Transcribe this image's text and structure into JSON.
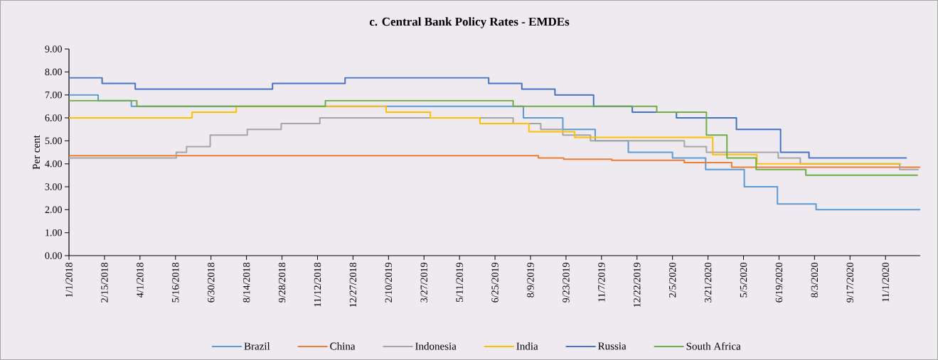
{
  "chart_data": {
    "type": "step",
    "title": "c. Central Bank Policy Rates - EMDEs",
    "ylabel": "Per cent",
    "xlim": [
      "2018-01-01",
      "2020-12-15"
    ],
    "xticks": [
      {
        "value": "2018-01-01",
        "label": "1/1/2018"
      },
      {
        "value": "2018-02-15",
        "label": "2/15/2018"
      },
      {
        "value": "2018-04-01",
        "label": "4/1/2018"
      },
      {
        "value": "2018-05-16",
        "label": "5/16/2018"
      },
      {
        "value": "2018-06-30",
        "label": "6/30/2018"
      },
      {
        "value": "2018-08-14",
        "label": "8/14/2018"
      },
      {
        "value": "2018-09-28",
        "label": "9/28/2018"
      },
      {
        "value": "2018-11-12",
        "label": "11/12/2018"
      },
      {
        "value": "2018-12-27",
        "label": "12/27/2018"
      },
      {
        "value": "2019-02-10",
        "label": "2/10/2019"
      },
      {
        "value": "2019-03-27",
        "label": "3/27/2019"
      },
      {
        "value": "2019-05-11",
        "label": "5/11/2019"
      },
      {
        "value": "2019-06-25",
        "label": "6/25/2019"
      },
      {
        "value": "2019-08-09",
        "label": "8/9/2019"
      },
      {
        "value": "2019-09-23",
        "label": "9/23/2019"
      },
      {
        "value": "2019-11-07",
        "label": "11/7/2019"
      },
      {
        "value": "2019-12-22",
        "label": "12/22/2019"
      },
      {
        "value": "2020-02-05",
        "label": "2/5/2020"
      },
      {
        "value": "2020-03-21",
        "label": "3/21/2020"
      },
      {
        "value": "2020-05-05",
        "label": "5/5/2020"
      },
      {
        "value": "2020-06-19",
        "label": "6/19/2020"
      },
      {
        "value": "2020-08-03",
        "label": "8/3/2020"
      },
      {
        "value": "2020-09-17",
        "label": "9/17/2020"
      },
      {
        "value": "2020-11-01",
        "label": "11/1/2020"
      }
    ],
    "ylim": [
      0,
      9
    ],
    "yticks": [
      {
        "value": 0,
        "label": "0.00"
      },
      {
        "value": 1,
        "label": "1.00"
      },
      {
        "value": 2,
        "label": "2.00"
      },
      {
        "value": 3,
        "label": "3.00"
      },
      {
        "value": 4,
        "label": "4.00"
      },
      {
        "value": 5,
        "label": "5.00"
      },
      {
        "value": 6,
        "label": "6.00"
      },
      {
        "value": 7,
        "label": "7.00"
      },
      {
        "value": 8,
        "label": "8.00"
      },
      {
        "value": 9,
        "label": "9.00"
      }
    ],
    "grid": false,
    "legend": "bottom",
    "marker": "none",
    "line_style": "solid",
    "series": [
      {
        "name": "Brazil",
        "color": "#5b9bd5",
        "x": [
          "2018-01-01",
          "2018-02-07",
          "2018-03-21",
          "2019-07-31",
          "2019-09-19",
          "2019-10-30",
          "2019-12-11",
          "2020-02-05",
          "2020-03-18",
          "2020-05-06",
          "2020-06-17",
          "2020-08-05",
          "2020-12-15"
        ],
        "values": [
          7.0,
          6.75,
          6.5,
          6.0,
          5.5,
          5.0,
          4.5,
          4.25,
          3.75,
          3.0,
          2.25,
          2.0,
          2.0
        ]
      },
      {
        "name": "China",
        "color": "#ed7d31",
        "x": [
          "2018-01-01",
          "2019-08-19",
          "2019-09-20",
          "2019-11-20",
          "2020-02-20",
          "2020-04-20",
          "2020-12-15"
        ],
        "values": [
          4.35,
          4.25,
          4.2,
          4.15,
          4.05,
          3.85,
          3.85
        ]
      },
      {
        "name": "Indonesia",
        "color": "#a5a5a5",
        "x": [
          "2018-01-01",
          "2018-05-17",
          "2018-05-30",
          "2018-06-29",
          "2018-08-15",
          "2018-09-27",
          "2018-11-15",
          "2019-07-18",
          "2019-08-22",
          "2019-09-19",
          "2019-10-24",
          "2020-02-20",
          "2020-03-19",
          "2020-06-18",
          "2020-07-16",
          "2020-11-19",
          "2020-12-13"
        ],
        "values": [
          4.25,
          4.5,
          4.75,
          5.25,
          5.5,
          5.75,
          6.0,
          5.75,
          5.5,
          5.25,
          5.0,
          4.75,
          4.5,
          4.25,
          4.0,
          3.75,
          3.75
        ]
      },
      {
        "name": "India",
        "color": "#ffc000",
        "x": [
          "2018-01-01",
          "2018-06-06",
          "2018-08-01",
          "2019-02-07",
          "2019-04-04",
          "2019-06-06",
          "2019-08-07",
          "2019-10-04",
          "2020-03-27",
          "2020-05-22",
          "2020-11-21"
        ],
        "values": [
          6.0,
          6.25,
          6.5,
          6.25,
          6.0,
          5.75,
          5.4,
          5.15,
          4.4,
          4.0,
          4.0
        ]
      },
      {
        "name": "Russia",
        "color": "#4472c4",
        "x": [
          "2018-01-01",
          "2018-02-12",
          "2018-03-26",
          "2018-09-16",
          "2018-12-17",
          "2019-06-17",
          "2019-07-29",
          "2019-09-09",
          "2019-10-28",
          "2019-12-16",
          "2020-02-10",
          "2020-04-26",
          "2020-06-21",
          "2020-07-27",
          "2020-11-28"
        ],
        "values": [
          7.75,
          7.5,
          7.25,
          7.5,
          7.75,
          7.5,
          7.25,
          7.0,
          6.5,
          6.25,
          6.0,
          5.5,
          4.5,
          4.25,
          4.25
        ]
      },
      {
        "name": "South Africa",
        "color": "#70ad47",
        "x": [
          "2018-01-01",
          "2018-03-28",
          "2018-11-22",
          "2019-07-18",
          "2020-01-16",
          "2020-03-19",
          "2020-04-14",
          "2020-05-21",
          "2020-07-23",
          "2020-12-12"
        ],
        "values": [
          6.75,
          6.5,
          6.75,
          6.5,
          6.25,
          5.25,
          4.25,
          3.75,
          3.5,
          3.5
        ]
      }
    ]
  }
}
